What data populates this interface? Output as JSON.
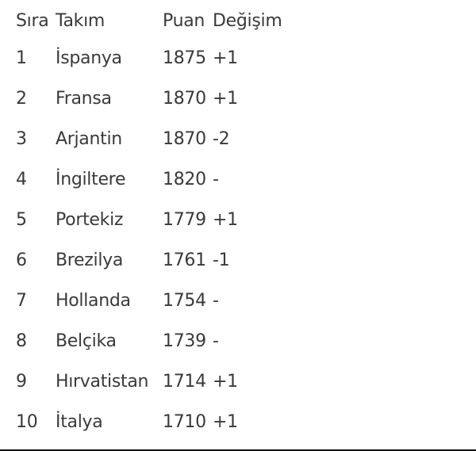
{
  "headers": [
    "Sıra",
    "Takım",
    "Puan",
    "Değişim"
  ],
  "rows": [
    [
      "1",
      "İspanya",
      "1875",
      "+1"
    ],
    [
      "2",
      "Fransa",
      "1870",
      "+1"
    ],
    [
      "3",
      "Arjantin",
      "1870",
      "-2"
    ],
    [
      "4",
      "İngiltere",
      "1820",
      "-"
    ],
    [
      "5",
      "Portekiz",
      "1779",
      "+1"
    ],
    [
      "6",
      "Brezilya",
      "1761",
      "-1"
    ],
    [
      "7",
      "Hollanda",
      "1754",
      "-"
    ],
    [
      "8",
      "Belçika",
      "1739",
      "-"
    ],
    [
      "9",
      "Hırvatistan",
      "1714",
      "+1"
    ],
    [
      "10",
      "İtalya",
      "1710",
      "+1"
    ]
  ]
}
